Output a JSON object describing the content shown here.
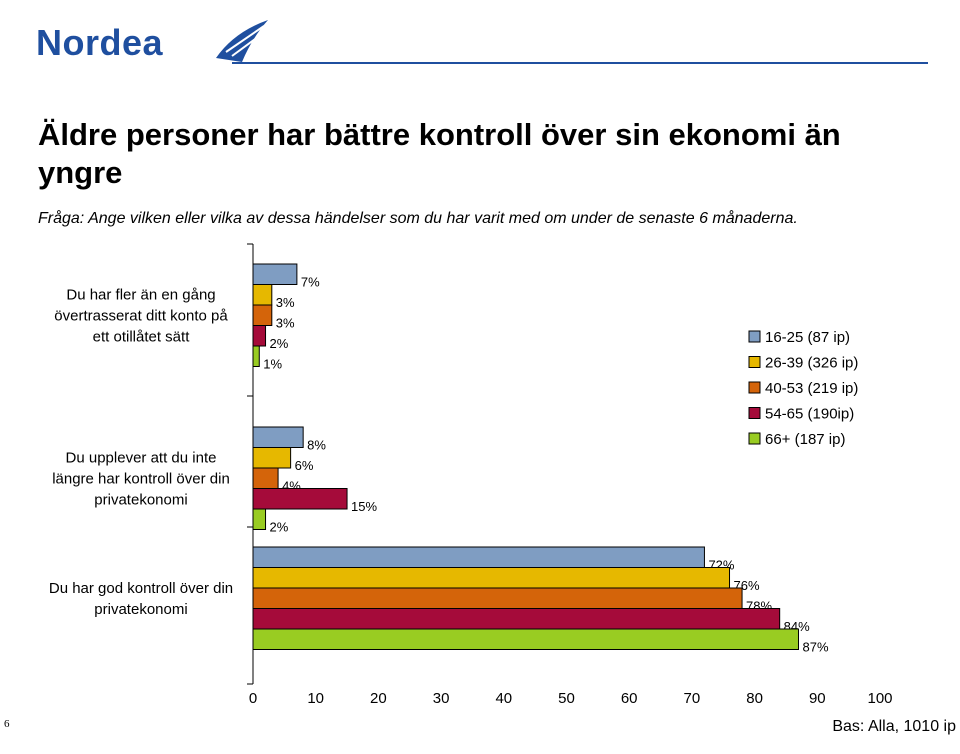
{
  "header": {
    "logo_text": "Nordea",
    "brand_color": "#1f4f9f"
  },
  "title": "Äldre personer har bättre kontroll över sin ekonomi än yngre",
  "subtitle": "Fråga: Ange vilken eller vilka av dessa händelser som du har varit med om under de senaste 6 månaderna.",
  "page_number": "6",
  "base_note": "Bas: Alla, 1010 ip",
  "chart_data": {
    "type": "bar",
    "orientation": "horizontal",
    "categories": [
      [
        "Du har fler än en gång",
        "övertrasserat ditt konto på",
        "ett otillåtet sätt"
      ],
      [
        "Du upplever att du inte",
        "längre har kontroll över din",
        "privatekonomi"
      ],
      [
        "Du har god kontroll över din",
        "privatekonomi"
      ]
    ],
    "series": [
      {
        "name": "16-25 (87 ip)",
        "color": "#7f9dc2",
        "values": [
          7,
          8,
          72
        ],
        "labels": [
          "7%",
          "8%",
          "72%"
        ]
      },
      {
        "name": "26-39 (326 ip)",
        "color": "#e6b800",
        "values": [
          3,
          6,
          76
        ],
        "labels": [
          "3%",
          "6%",
          "76%"
        ]
      },
      {
        "name": "40-53 (219 ip)",
        "color": "#d4640a",
        "values": [
          3,
          4,
          78
        ],
        "labels": [
          "3%",
          "4%",
          "78%"
        ]
      },
      {
        "name": "54-65 (190ip)",
        "color": "#a50b3a",
        "values": [
          2,
          15,
          84
        ],
        "labels": [
          "2%",
          "15%",
          "84%"
        ]
      },
      {
        "name": "66+ (187 ip)",
        "color": "#99cc22",
        "values": [
          1,
          2,
          87
        ],
        "labels": [
          "1%",
          "2%",
          "87%"
        ]
      }
    ],
    "xlim": [
      0,
      100
    ],
    "xticks": [
      "0",
      "10",
      "20",
      "30",
      "40",
      "50",
      "60",
      "70",
      "80",
      "90",
      "100"
    ],
    "legend_position": "right",
    "grid": false
  }
}
